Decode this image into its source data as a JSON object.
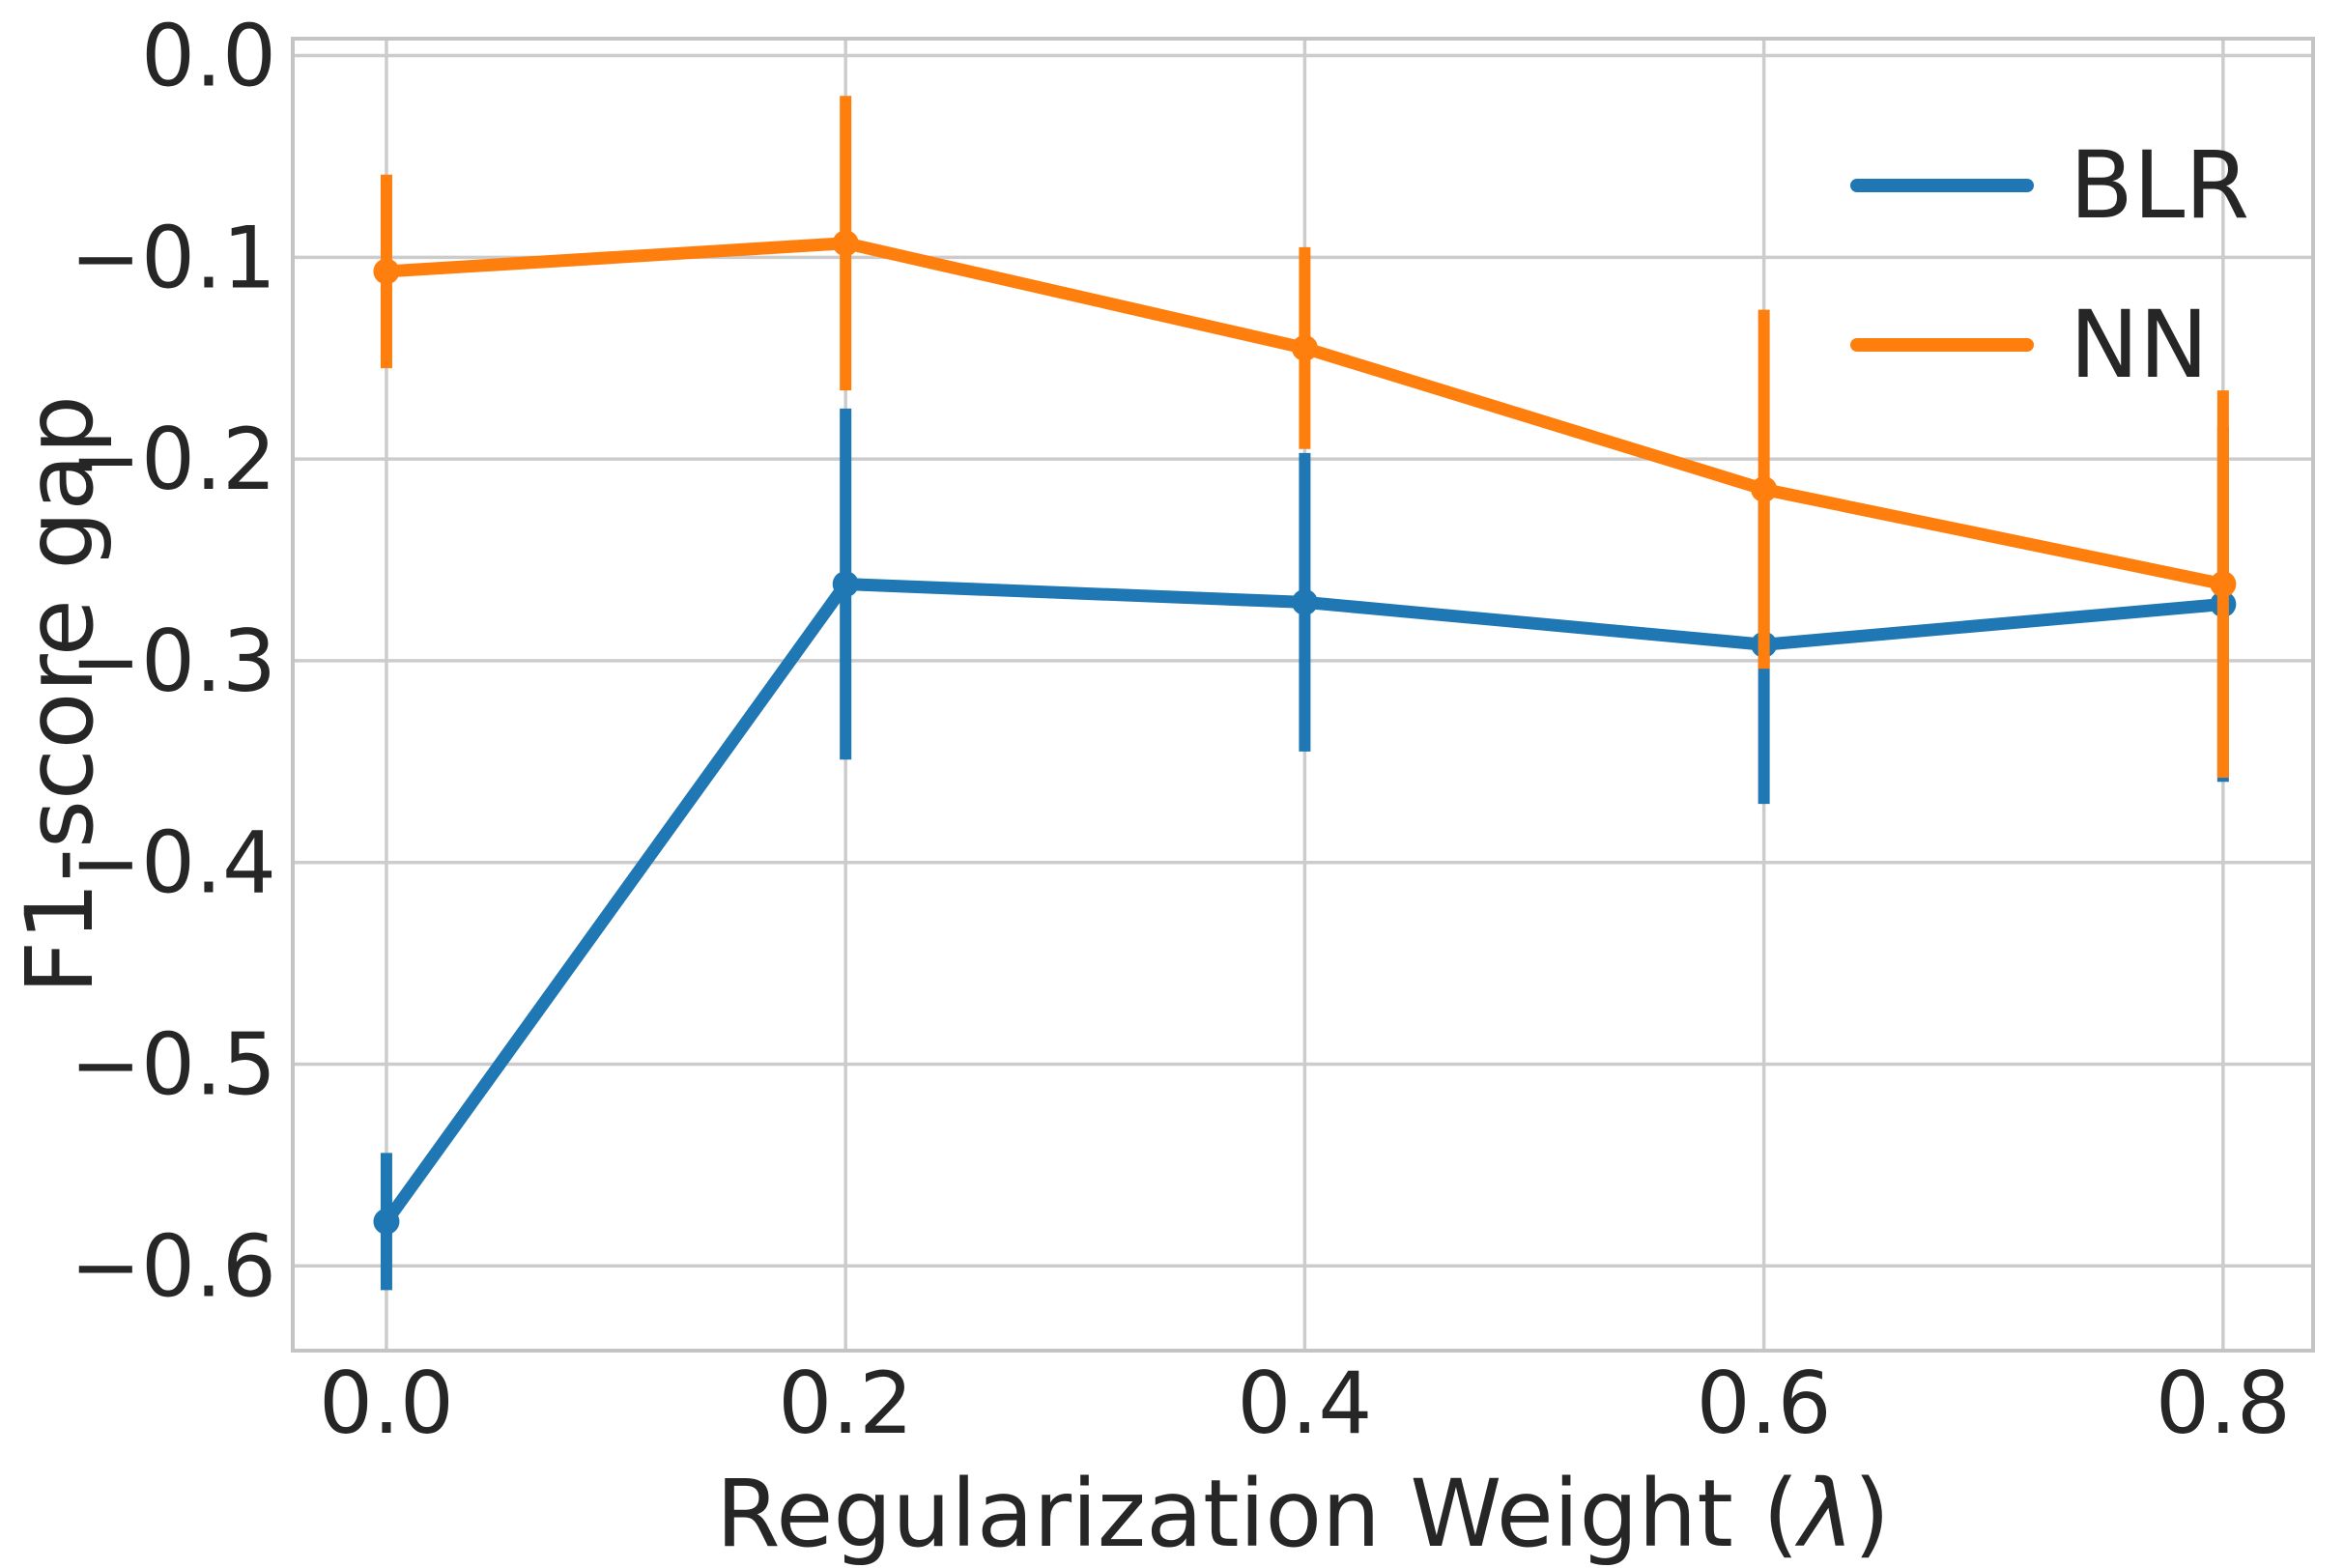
{
  "chart_data": {
    "type": "line",
    "title": "",
    "xlabel_parts": [
      {
        "text": "Regularization Weight (",
        "italic": false
      },
      {
        "text": "λ",
        "italic": true
      },
      {
        "text": ")",
        "italic": false
      }
    ],
    "xlabel": "Regularization Weight (λ)",
    "ylabel": "F1-score gap",
    "x": [
      0.0,
      0.2,
      0.4,
      0.6,
      0.8
    ],
    "xtick_labels": [
      "0.0",
      "0.2",
      "0.4",
      "0.6",
      "0.8"
    ],
    "ytick_values": [
      0.0,
      -0.1,
      -0.2,
      -0.3,
      -0.4,
      -0.5,
      -0.6
    ],
    "ytick_labels": [
      "0.0",
      "−0.1",
      "−0.2",
      "−0.3",
      "−0.4",
      "−0.5",
      "−0.6"
    ],
    "xlim": [
      -0.0408,
      0.8392
    ],
    "ylim": [
      -0.642,
      0.0084
    ],
    "grid": true,
    "grid_color": "#cccccc",
    "spine_color": "#c4c4c4",
    "text_color": "#262626",
    "background": "#ffffff",
    "legend_position": "upper right",
    "series": [
      {
        "name": "BLR",
        "color": "#1f77b4",
        "marker": "circle",
        "values": [
          -0.578,
          -0.262,
          -0.271,
          -0.292,
          -0.272
        ],
        "yerr": [
          0.034,
          0.087,
          0.074,
          0.079,
          0.088
        ]
      },
      {
        "name": "NN",
        "color": "#ff7f0e",
        "marker": "circle",
        "values": [
          -0.107,
          -0.093,
          -0.145,
          -0.215,
          -0.262
        ],
        "yerr": [
          0.048,
          0.073,
          0.05,
          0.089,
          0.096
        ]
      }
    ]
  }
}
